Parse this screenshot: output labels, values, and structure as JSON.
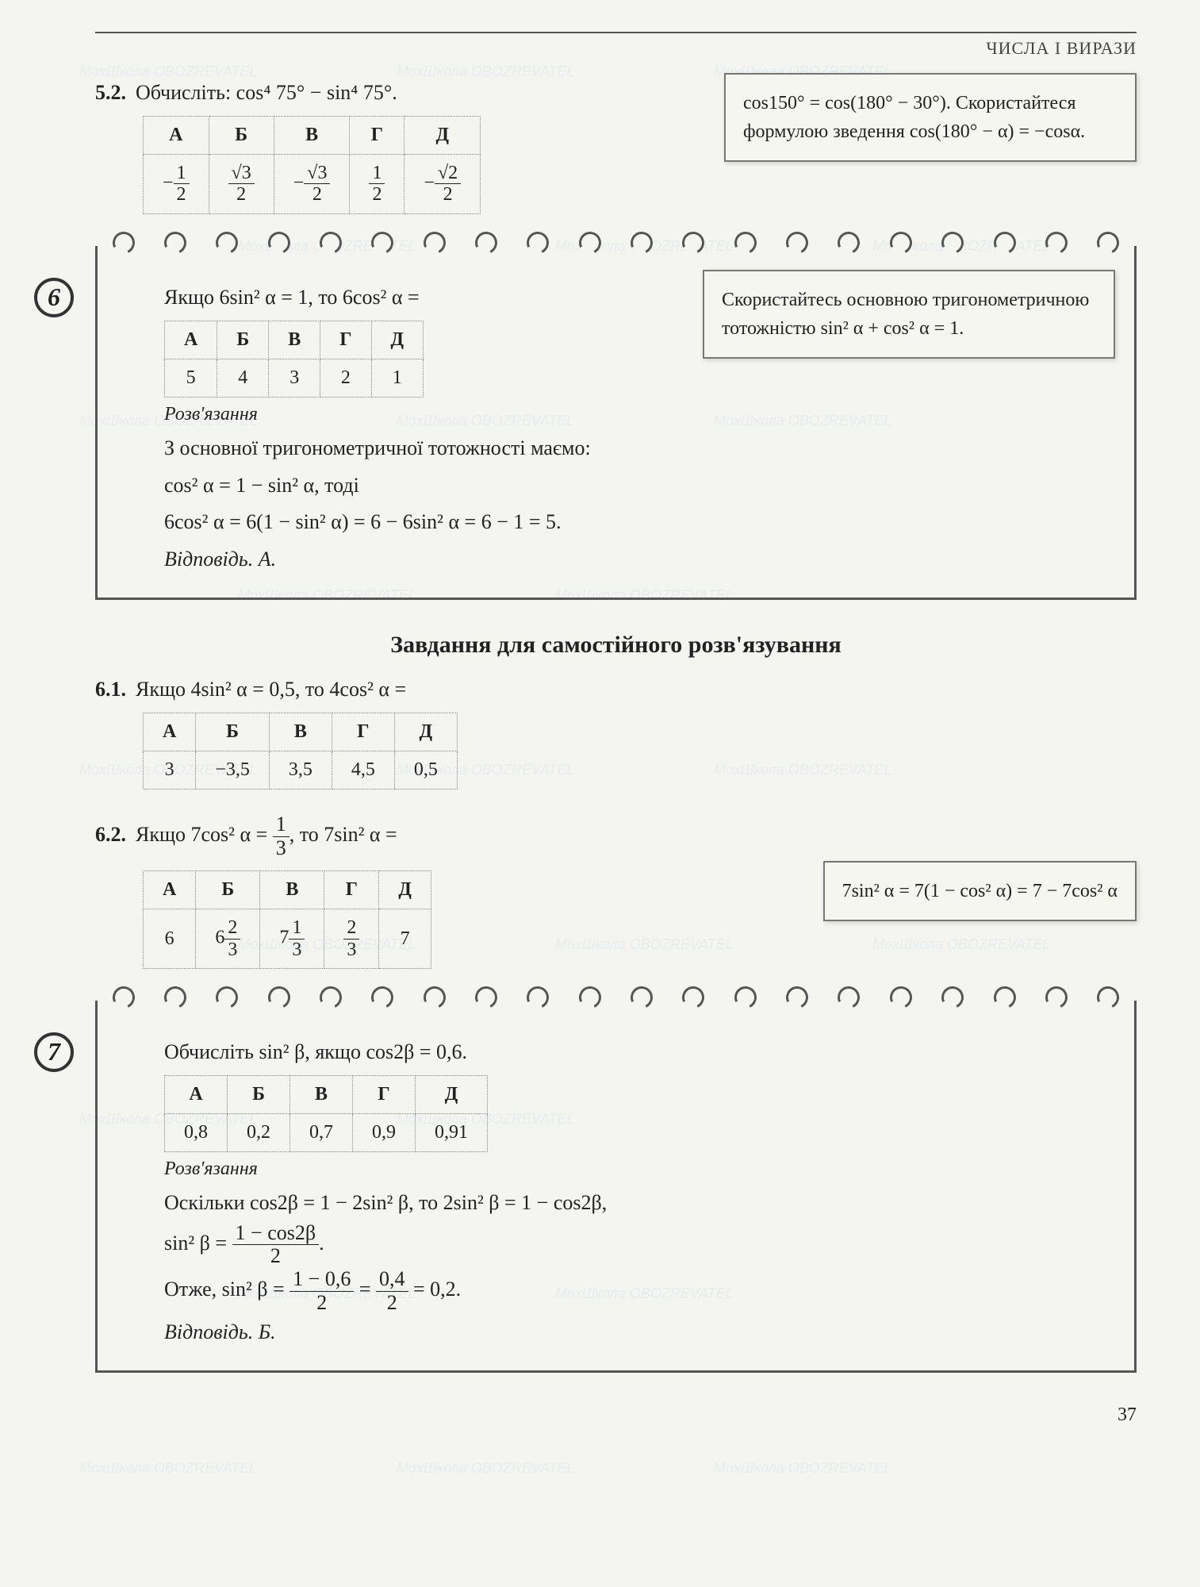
{
  "header": {
    "label": "ЧИСЛА І ВИРАЗИ"
  },
  "page_number": "37",
  "section_title": "Завдання для самостійного розв'язування",
  "watermark_text": "MoxШкола OBOZREVATEL",
  "problems": {
    "p52": {
      "num": "5.2.",
      "text": "Обчисліть: cos⁴ 75° − sin⁴ 75°.",
      "headers": [
        "А",
        "Б",
        "В",
        "Г",
        "Д"
      ],
      "options_html": [
        "−<span class='frac'><span class='top'>1</span><span class='bot'>2</span></span>",
        "<span class='frac'><span class='top'>√3</span><span class='bot'>2</span></span>",
        "−<span class='frac'><span class='top'>√3</span><span class='bot'>2</span></span>",
        "<span class='frac'><span class='top'>1</span><span class='bot'>2</span></span>",
        "−<span class='frac'><span class='top'>√2</span><span class='bot'>2</span></span>"
      ],
      "hint": "cos150° = cos(180° − 30°). Скористайтеся формулою зведення cos(180° − α) = −cosα."
    },
    "p6": {
      "num": "6",
      "text": "Якщо 6sin² α = 1, то 6cos² α =",
      "headers": [
        "А",
        "Б",
        "В",
        "Г",
        "Д"
      ],
      "options": [
        "5",
        "4",
        "3",
        "2",
        "1"
      ],
      "hint": "Скористайтесь основною тригонометричною тотожністю sin² α + cos² α = 1.",
      "solution_label": "Розв'язання",
      "solution_lines": [
        "З основної тригонометричної тотожності маємо:",
        "cos² α = 1 − sin² α, тоді",
        "6cos² α = 6(1 − sin² α) = 6 − 6sin² α = 6 − 1 = 5."
      ],
      "answer": "Відповідь. А."
    },
    "p61": {
      "num": "6.1.",
      "text": "Якщо 4sin² α = 0,5, то 4cos² α =",
      "headers": [
        "А",
        "Б",
        "В",
        "Г",
        "Д"
      ],
      "options": [
        "3",
        "−3,5",
        "3,5",
        "4,5",
        "0,5"
      ]
    },
    "p62": {
      "num": "6.2.",
      "text_html": "Якщо 7cos² α = <span class='frac'><span class='top'>1</span><span class='bot'>3</span></span>, то 7sin² α =",
      "headers": [
        "А",
        "Б",
        "В",
        "Г",
        "Д"
      ],
      "options_html": [
        "6",
        "6<span class='frac'><span class='top'>2</span><span class='bot'>3</span></span>",
        "7<span class='frac'><span class='top'>1</span><span class='bot'>3</span></span>",
        "<span class='frac'><span class='top'>2</span><span class='bot'>3</span></span>",
        "7"
      ],
      "hint": "7sin² α = 7(1 − cos² α) = 7 − 7cos² α"
    },
    "p7": {
      "num": "7",
      "text": "Обчисліть sin² β, якщо cos2β = 0,6.",
      "headers": [
        "А",
        "Б",
        "В",
        "Г",
        "Д"
      ],
      "options": [
        "0,8",
        "0,2",
        "0,7",
        "0,9",
        "0,91"
      ],
      "solution_label": "Розв'язання",
      "solution_lines": [
        "Оскільки cos2β = 1 − 2sin² β, то 2sin² β = 1 − cos2β,"
      ],
      "solution_frac_line": "sin² β = <span class='frac'><span class='top'>1 − cos2β</span><span class='bot'>2</span></span>.",
      "solution_final": "Отже, sin² β = <span class='frac'><span class='top'>1 − 0,6</span><span class='bot'>2</span></span> = <span class='frac'><span class='top'>0,4</span><span class='bot'>2</span></span> = 0,2.",
      "answer": "Відповідь. Б."
    }
  },
  "style": {
    "border_color": "#555",
    "hint_border": "#777",
    "background": "#f4f4f0",
    "text_color": "#222",
    "watermark_color": "#4aa3c7",
    "table_border": "#888",
    "font_body_pt": 26,
    "font_header_pt": 22,
    "font_title_pt": 30
  }
}
